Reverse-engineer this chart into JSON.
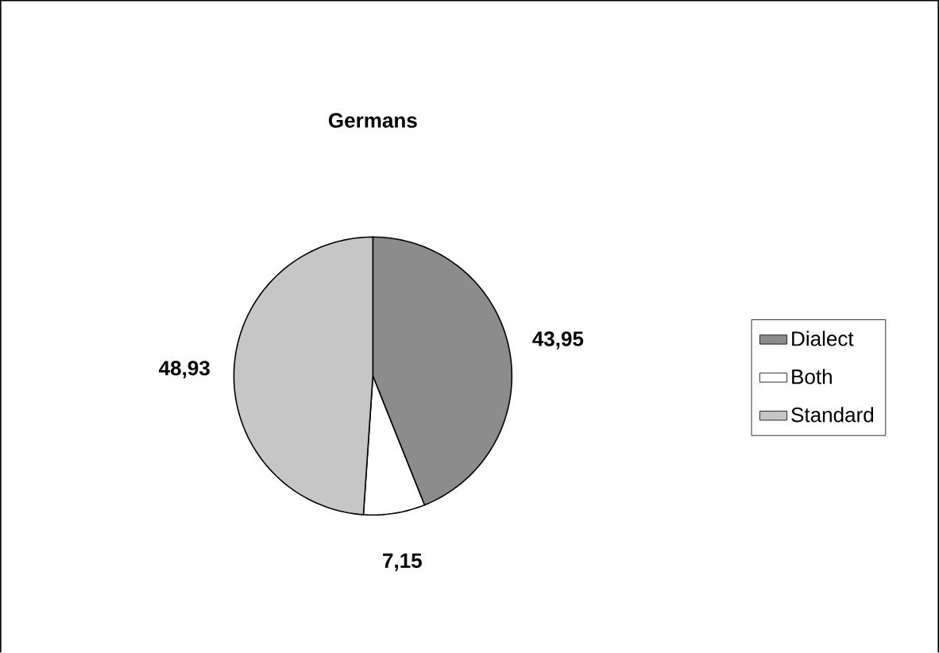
{
  "chart_data": {
    "type": "pie",
    "title": "Germans",
    "categories": [
      "Dialect",
      "Both",
      "Standard"
    ],
    "values": [
      43.95,
      7.15,
      48.93
    ],
    "value_labels": [
      "43,95",
      "7,15",
      "48,93"
    ],
    "colors": [
      "#8c8c8c",
      "#ffffff",
      "#c6c6c6"
    ],
    "legend": "right"
  }
}
